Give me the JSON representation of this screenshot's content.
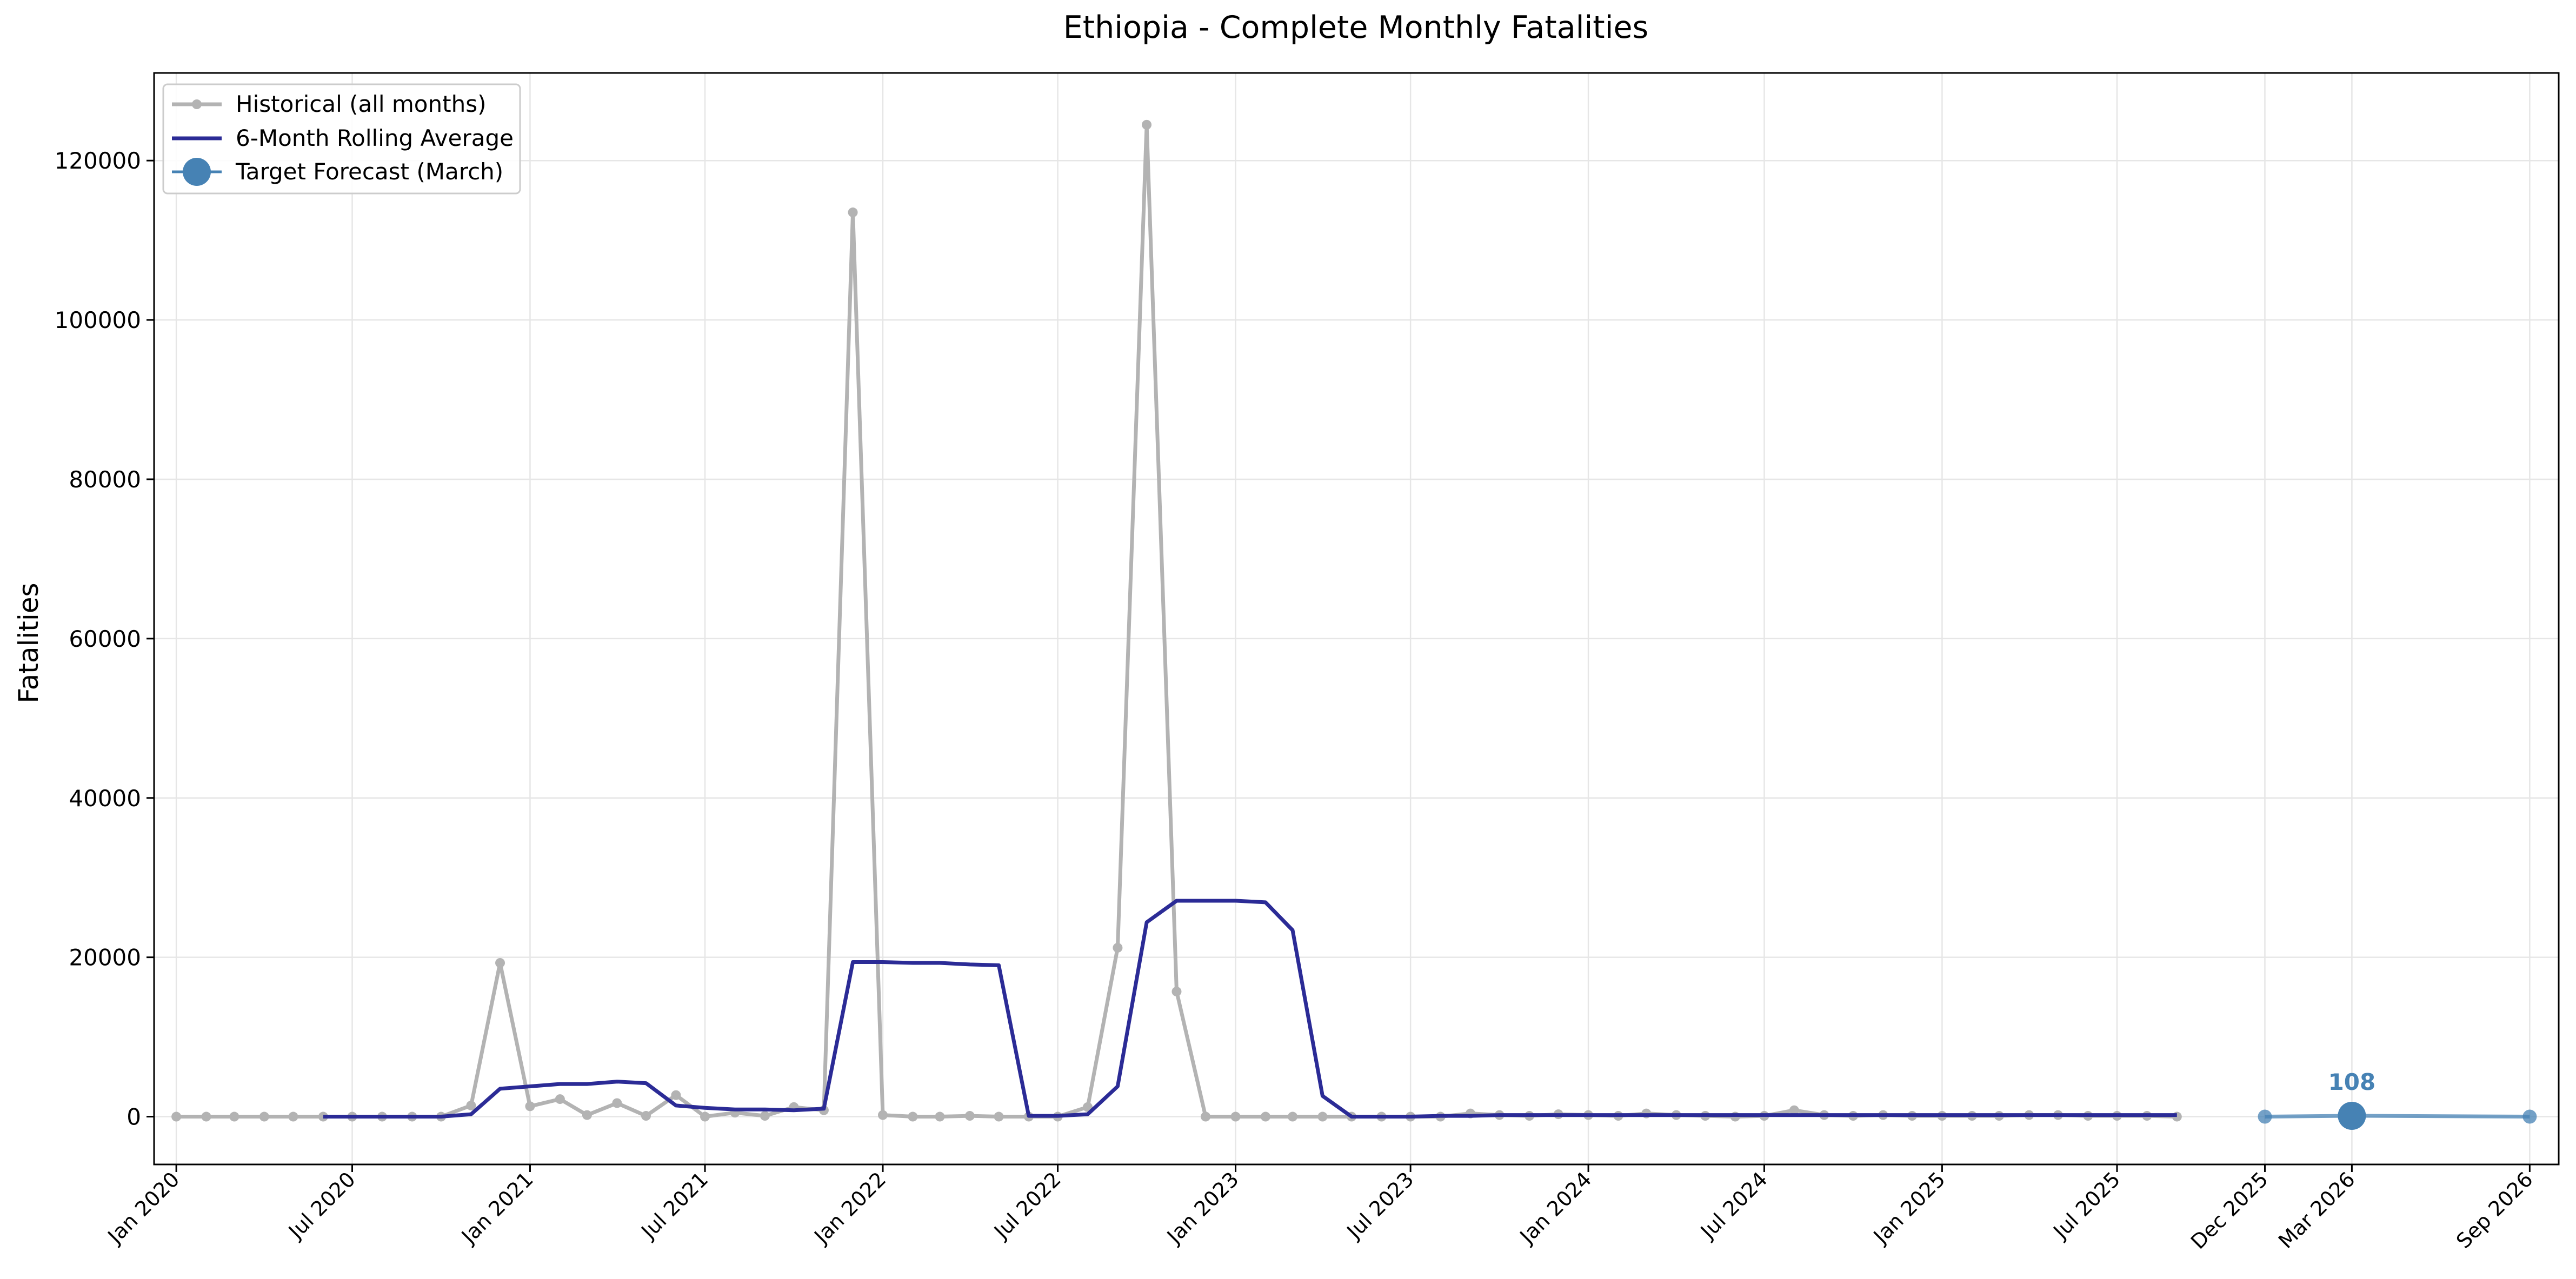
{
  "chart_data": {
    "type": "line",
    "title": "Ethiopia - Complete Monthly Fatalities",
    "xlabel": "",
    "ylabel": "Fatalities",
    "xlim": [
      "2019-12-09",
      "2026-10-01"
    ],
    "ylim": [
      -6000,
      131000
    ],
    "y_ticks": [
      0,
      20000,
      40000,
      60000,
      80000,
      100000,
      120000
    ],
    "grid": true,
    "legend_position": "top-left",
    "x_ticks": [
      {
        "date": "2020-01-01",
        "label": "Jan 2020"
      },
      {
        "date": "2020-07-01",
        "label": "Jul 2020"
      },
      {
        "date": "2021-01-01",
        "label": "Jan 2021"
      },
      {
        "date": "2021-07-01",
        "label": "Jul 2021"
      },
      {
        "date": "2022-01-01",
        "label": "Jan 2022"
      },
      {
        "date": "2022-07-01",
        "label": "Jul 2022"
      },
      {
        "date": "2023-01-01",
        "label": "Jan 2023"
      },
      {
        "date": "2023-07-01",
        "label": "Jul 2023"
      },
      {
        "date": "2024-01-01",
        "label": "Jan 2024"
      },
      {
        "date": "2024-07-01",
        "label": "Jul 2024"
      },
      {
        "date": "2025-01-01",
        "label": "Jan 2025"
      },
      {
        "date": "2025-07-01",
        "label": "Jul 2025"
      },
      {
        "date": "2025-12-01",
        "label": "Dec 2025"
      },
      {
        "date": "2026-03-01",
        "label": "Mar 2026"
      },
      {
        "date": "2026-09-01",
        "label": "Sep 2026"
      }
    ],
    "series": [
      {
        "name": "Historical (all months)",
        "color": "#b3b3b3",
        "style": "line-with-small-markers",
        "start": "2020-01",
        "values": [
          0,
          0,
          0,
          0,
          0,
          0,
          0,
          0,
          0,
          0,
          1400,
          19300,
          1300,
          2200,
          200,
          1700,
          100,
          2700,
          0,
          500,
          100,
          1200,
          800,
          113500,
          200,
          0,
          0,
          100,
          0,
          0,
          0,
          1200,
          21200,
          124500,
          15700,
          0,
          0,
          0,
          0,
          0,
          0,
          0,
          0,
          0,
          400,
          200,
          100,
          300,
          200,
          100,
          400,
          200,
          100,
          0,
          100,
          800,
          200,
          100,
          200,
          100,
          100,
          100,
          100,
          200,
          200,
          100,
          100,
          100,
          0
        ]
      },
      {
        "name": "6-Month Rolling Average",
        "color": "#2b2b96",
        "style": "line",
        "start": "2020-06",
        "values": [
          0,
          0,
          0,
          0,
          0,
          300,
          3500,
          3800,
          4100,
          4100,
          4400,
          4200,
          1400,
          1100,
          900,
          900,
          800,
          1000,
          19400,
          19400,
          19300,
          19300,
          19100,
          19000,
          100,
          100,
          300,
          3800,
          24400,
          27100,
          27100,
          27100,
          26900,
          23400,
          2600,
          0,
          0,
          0,
          100,
          100,
          200,
          200,
          200,
          200,
          200,
          200,
          200,
          200,
          200,
          200,
          200,
          200,
          200,
          200,
          200,
          200,
          200,
          200,
          200,
          200,
          200,
          200,
          200,
          200
        ]
      }
    ],
    "forecast": {
      "name": "Target Forecast (March)",
      "color": "#4682b4",
      "points": [
        {
          "date": "2025-12-01",
          "value": 0
        },
        {
          "date": "2026-03-01",
          "value": 108
        },
        {
          "date": "2026-09-01",
          "value": 0
        }
      ],
      "target_date": "2026-03-01",
      "target_label": "108"
    }
  }
}
